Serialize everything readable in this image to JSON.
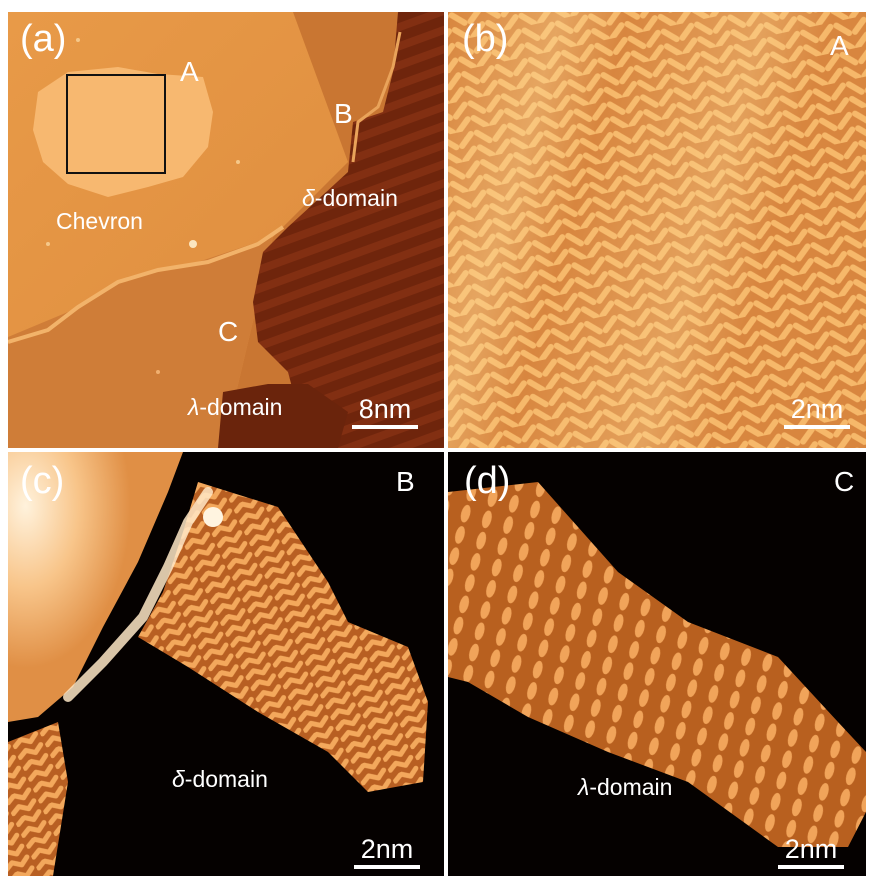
{
  "panels": [
    {
      "id": "a",
      "label": "(a)",
      "corner_tag": "A",
      "region_labels": {
        "B": "B",
        "C": "C"
      },
      "domain_labels": {
        "chevron": "Chevron",
        "delta_symbol": "δ",
        "delta_suffix": "-domain",
        "lambda_symbol": "λ",
        "lambda_suffix": "-domain"
      },
      "scale_bar": "8nm"
    },
    {
      "id": "b",
      "label": "(b)",
      "corner_tag": "A",
      "scale_bar": "2nm"
    },
    {
      "id": "c",
      "label": "(c)",
      "corner_tag": "B",
      "domain_labels": {
        "symbol": "δ",
        "suffix": "-domain"
      },
      "scale_bar": "2nm"
    },
    {
      "id": "d",
      "label": "(d)",
      "corner_tag": "C",
      "domain_labels": {
        "symbol": "λ",
        "suffix": "-domain"
      },
      "scale_bar": "2nm"
    }
  ],
  "colors": {
    "background": "#ffffff",
    "terrace_light": "#f0a650",
    "terrace_mid": "#cf7b37",
    "terrace_dark": "#7a2c10",
    "molecule_bright": "#ffd08a",
    "substrate_black": "#050100",
    "text": "#ffffff"
  }
}
